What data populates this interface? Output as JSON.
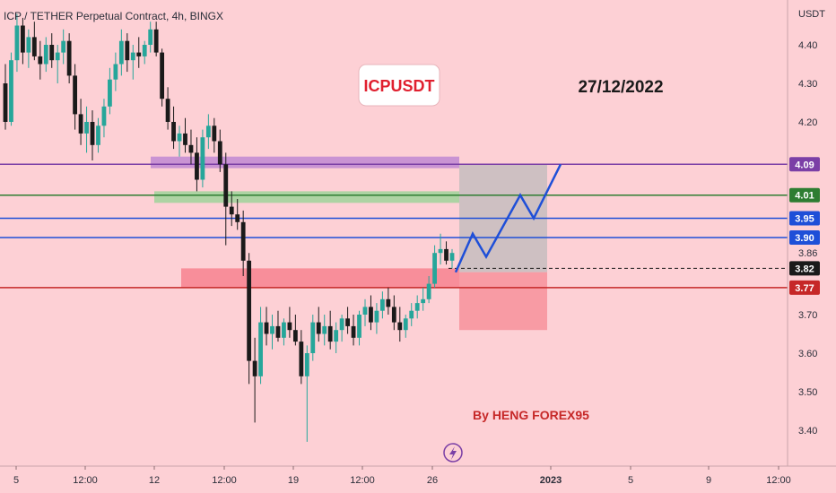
{
  "symbol_label": "ICP / TETHER Perpetual Contract, 4h, BINGX",
  "currency": "USDT",
  "title_box": "ICPUSDT",
  "date_text": "27/12/2022",
  "author_text": "By HENG FOREX95",
  "colors": {
    "background": "#fdd0d5",
    "up": "#26a69a",
    "down": "#1a1a1a",
    "purple": "#7b3fa6",
    "green": "#2e7d32",
    "blue": "#1e4fd8",
    "red": "#c62828",
    "projection": "#1e4fd8"
  },
  "chart_data": {
    "type": "candlestick",
    "x_tick_labels": [
      "5",
      "12:00",
      "12",
      "12:00",
      "19",
      "12:00",
      "26",
      "2023",
      "5",
      "9",
      "12:00"
    ],
    "y_tick_labels": [
      "4.40",
      "4.30",
      "4.20",
      "3.70",
      "3.60",
      "3.50",
      "3.40"
    ],
    "y_range": [
      3.35,
      4.48
    ],
    "current_price": 3.86,
    "price_levels": [
      {
        "label": "4.09",
        "value": 4.09,
        "color": "purple"
      },
      {
        "label": "4.01",
        "value": 4.01,
        "color": "green"
      },
      {
        "label": "3.95",
        "value": 3.95,
        "color": "blue"
      },
      {
        "label": "3.90",
        "value": 3.9,
        "color": "blue"
      },
      {
        "label": "3.82",
        "value": 3.82,
        "color": "dark"
      },
      {
        "label": "3.77",
        "value": 3.77,
        "color": "red"
      }
    ],
    "zones": [
      {
        "name": "supply-zone-purple",
        "from": 4.08,
        "to": 4.11
      },
      {
        "name": "supply-zone-green",
        "from": 3.99,
        "to": 4.02
      },
      {
        "name": "demand-zone-red",
        "from": 3.77,
        "to": 3.82
      }
    ],
    "position": {
      "entry": 3.81,
      "target": 4.09,
      "stop": 3.66
    },
    "projection_path": [
      3.81,
      3.91,
      3.85,
      4.01,
      3.95,
      4.09
    ],
    "candles": [
      [
        4.3,
        4.35,
        4.18,
        4.2
      ],
      [
        4.2,
        4.38,
        4.19,
        4.36
      ],
      [
        4.36,
        4.48,
        4.33,
        4.45
      ],
      [
        4.45,
        4.47,
        4.35,
        4.38
      ],
      [
        4.38,
        4.44,
        4.34,
        4.42
      ],
      [
        4.42,
        4.46,
        4.36,
        4.37
      ],
      [
        4.37,
        4.41,
        4.31,
        4.35
      ],
      [
        4.35,
        4.42,
        4.33,
        4.4
      ],
      [
        4.4,
        4.43,
        4.34,
        4.36
      ],
      [
        4.36,
        4.4,
        4.3,
        4.38
      ],
      [
        4.38,
        4.44,
        4.35,
        4.41
      ],
      [
        4.41,
        4.43,
        4.3,
        4.32
      ],
      [
        4.32,
        4.35,
        4.18,
        4.22
      ],
      [
        4.22,
        4.26,
        4.14,
        4.17
      ],
      [
        4.17,
        4.24,
        4.12,
        4.2
      ],
      [
        4.2,
        4.23,
        4.1,
        4.14
      ],
      [
        4.14,
        4.21,
        4.12,
        4.19
      ],
      [
        4.19,
        4.26,
        4.16,
        4.24
      ],
      [
        4.24,
        4.34,
        4.22,
        4.31
      ],
      [
        4.31,
        4.38,
        4.28,
        4.35
      ],
      [
        4.35,
        4.44,
        4.32,
        4.41
      ],
      [
        4.41,
        4.43,
        4.33,
        4.36
      ],
      [
        4.36,
        4.4,
        4.31,
        4.38
      ],
      [
        4.38,
        4.42,
        4.34,
        4.37
      ],
      [
        4.37,
        4.41,
        4.35,
        4.4
      ],
      [
        4.4,
        4.46,
        4.38,
        4.44
      ],
      [
        4.44,
        4.46,
        4.37,
        4.38
      ],
      [
        4.38,
        4.39,
        4.24,
        4.26
      ],
      [
        4.26,
        4.29,
        4.18,
        4.2
      ],
      [
        4.2,
        4.24,
        4.13,
        4.15
      ],
      [
        4.15,
        4.19,
        4.11,
        4.17
      ],
      [
        4.17,
        4.21,
        4.12,
        4.14
      ],
      [
        4.14,
        4.18,
        4.09,
        4.12
      ],
      [
        4.12,
        4.16,
        4.02,
        4.05
      ],
      [
        4.05,
        4.18,
        4.03,
        4.16
      ],
      [
        4.16,
        4.22,
        4.13,
        4.19
      ],
      [
        4.19,
        4.21,
        4.12,
        4.15
      ],
      [
        4.15,
        4.18,
        4.07,
        4.09
      ],
      [
        4.09,
        4.12,
        3.88,
        3.98
      ],
      [
        3.98,
        4.02,
        3.93,
        3.96
      ],
      [
        3.96,
        4.0,
        3.92,
        3.94
      ],
      [
        3.94,
        3.97,
        3.8,
        3.84
      ],
      [
        3.84,
        3.86,
        3.52,
        3.58
      ],
      [
        3.58,
        3.64,
        3.42,
        3.54
      ],
      [
        3.54,
        3.72,
        3.52,
        3.68
      ],
      [
        3.68,
        3.72,
        3.62,
        3.65
      ],
      [
        3.65,
        3.7,
        3.61,
        3.67
      ],
      [
        3.67,
        3.71,
        3.63,
        3.64
      ],
      [
        3.64,
        3.69,
        3.62,
        3.68
      ],
      [
        3.68,
        3.72,
        3.64,
        3.66
      ],
      [
        3.66,
        3.7,
        3.62,
        3.63
      ],
      [
        3.63,
        3.66,
        3.52,
        3.54
      ],
      [
        3.54,
        3.62,
        3.37,
        3.6
      ],
      [
        3.6,
        3.7,
        3.58,
        3.68
      ],
      [
        3.68,
        3.72,
        3.63,
        3.65
      ],
      [
        3.65,
        3.7,
        3.62,
        3.67
      ],
      [
        3.67,
        3.71,
        3.61,
        3.63
      ],
      [
        3.63,
        3.68,
        3.6,
        3.66
      ],
      [
        3.66,
        3.7,
        3.63,
        3.69
      ],
      [
        3.69,
        3.72,
        3.65,
        3.67
      ],
      [
        3.67,
        3.7,
        3.62,
        3.64
      ],
      [
        3.64,
        3.71,
        3.62,
        3.7
      ],
      [
        3.7,
        3.74,
        3.67,
        3.72
      ],
      [
        3.72,
        3.75,
        3.66,
        3.68
      ],
      [
        3.68,
        3.73,
        3.65,
        3.71
      ],
      [
        3.71,
        3.76,
        3.69,
        3.74
      ],
      [
        3.74,
        3.77,
        3.7,
        3.72
      ],
      [
        3.72,
        3.75,
        3.66,
        3.68
      ],
      [
        3.68,
        3.72,
        3.63,
        3.66
      ],
      [
        3.66,
        3.7,
        3.64,
        3.69
      ],
      [
        3.69,
        3.73,
        3.67,
        3.71
      ],
      [
        3.71,
        3.75,
        3.69,
        3.73
      ],
      [
        3.73,
        3.77,
        3.71,
        3.74
      ],
      [
        3.74,
        3.8,
        3.73,
        3.78
      ],
      [
        3.78,
        3.88,
        3.77,
        3.86
      ],
      [
        3.86,
        3.91,
        3.83,
        3.87
      ],
      [
        3.87,
        3.89,
        3.83,
        3.84
      ],
      [
        3.84,
        3.87,
        3.82,
        3.86
      ]
    ]
  }
}
